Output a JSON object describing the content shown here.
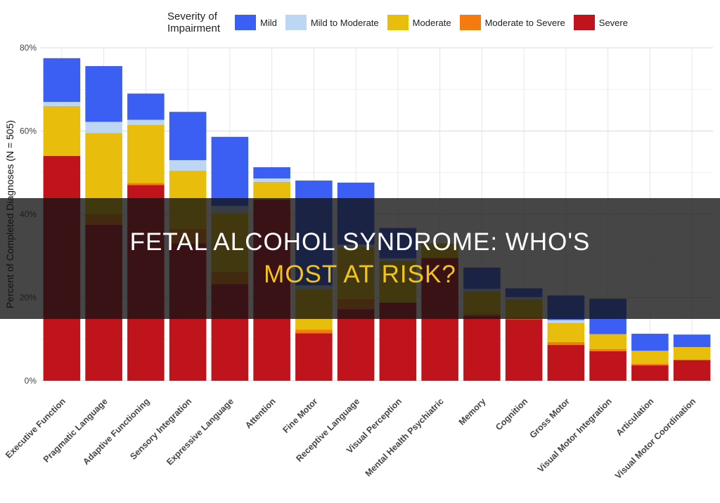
{
  "chart_data": {
    "type": "bar",
    "stacked": true,
    "ylabel": "Percent of Completed Diagnoses (N = 505)",
    "xlabel": "",
    "ylim": [
      0,
      80
    ],
    "yticks": [
      0,
      20,
      40,
      60,
      80
    ],
    "ytick_labels": [
      "0%",
      "20%",
      "40%",
      "60%",
      "80%"
    ],
    "grid": true,
    "legend": {
      "title": "Severity of Impairment",
      "placement": "top"
    },
    "categories": [
      "Executive Function",
      "Pragmatic Language",
      "Adaptive Functioning",
      "Sensory Integration",
      "Expressive Language",
      "Attention",
      "Fine Motor",
      "Receptive Language",
      "Visual Perception",
      "Mental Health Psychiatric",
      "Memory",
      "Cognition",
      "Gross Motor",
      "Visual Motor Integration",
      "Articulation",
      "Visual Motor Coordination"
    ],
    "series": [
      {
        "name": "Severe",
        "color": "#c0141c",
        "values": [
          54,
          37.5,
          47,
          33,
          23.2,
          43.5,
          11.4,
          17.2,
          18.8,
          29.5,
          15.6,
          14.8,
          8.6,
          7.1,
          3.7,
          5
        ]
      },
      {
        "name": "Moderate to Severe",
        "color": "#f57b10",
        "values": [
          0,
          2.5,
          0.5,
          3.5,
          3,
          0,
          0.9,
          2.4,
          0,
          0,
          0.5,
          0.4,
          0.7,
          0.5,
          0.4,
          0
        ]
      },
      {
        "name": "Moderate",
        "color": "#e8bd0b",
        "values": [
          12,
          19.5,
          14,
          14,
          14,
          4.3,
          9.7,
          12.5,
          10,
          3.5,
          5.4,
          4.3,
          4.6,
          3.6,
          3.1,
          3.1
        ]
      },
      {
        "name": "Mild to Moderate",
        "color": "#bdd7f2",
        "values": [
          1,
          2.7,
          1.2,
          2.5,
          1.8,
          0.8,
          0.9,
          0.6,
          0.6,
          0,
          0.6,
          0.6,
          0.7,
          0,
          0,
          0
        ]
      },
      {
        "name": "Mild",
        "color": "#3a5ff2",
        "values": [
          10.5,
          13.4,
          6.3,
          11.6,
          16.6,
          2.7,
          25.2,
          14.9,
          7.3,
          0,
          5.1,
          2.1,
          5.9,
          8.5,
          4.1,
          3
        ]
      }
    ]
  },
  "legend_order": [
    "Mild",
    "Mild to Moderate",
    "Moderate",
    "Moderate to Severe",
    "Severe"
  ],
  "overlay": {
    "line1": "FETAL ALCOHOL SYNDROME: WHO'S",
    "line2": "MOST AT RISK?"
  }
}
